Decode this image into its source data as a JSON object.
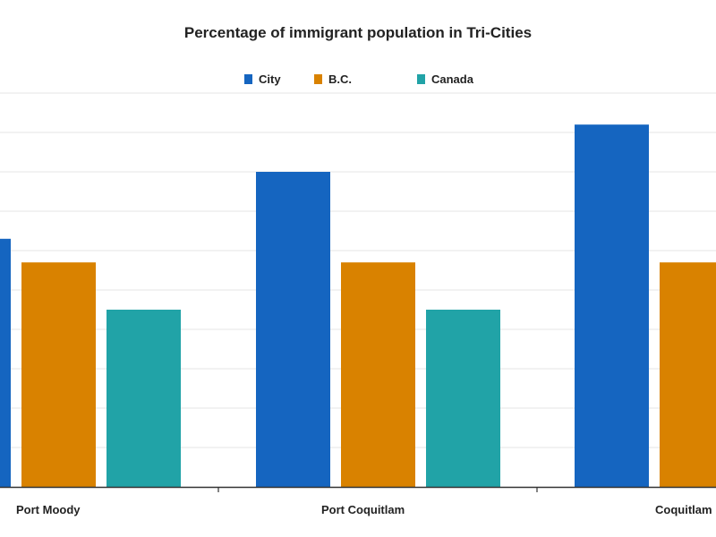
{
  "chart_data": {
    "type": "bar",
    "title": "Percentage of immigrant population in Tri-Cities",
    "xlabel": "",
    "ylabel": "",
    "categories": [
      "Port Moody",
      "Port Coquitlam",
      "Coquitlam"
    ],
    "series": [
      {
        "name": "City",
        "color": "#1565c0",
        "values": [
          31.5,
          40,
          46
        ]
      },
      {
        "name": "B.C.",
        "color": "#d98200",
        "values": [
          28.5,
          28.5,
          28.5
        ]
      },
      {
        "name": "Canada",
        "color": "#21a3a7",
        "values": [
          22.5,
          22.5,
          22.5
        ]
      }
    ],
    "ylim": [
      0,
      50
    ],
    "grid": true,
    "legend_position": "top"
  }
}
